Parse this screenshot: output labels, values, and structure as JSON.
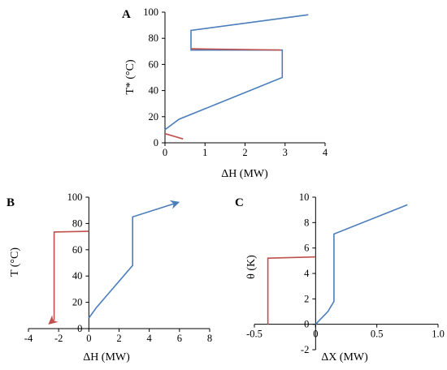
{
  "chart_data": [
    {
      "type": "line",
      "panel_label": "A",
      "xlabel": "ΔH (MW)",
      "ylabel": "T* (°C)",
      "xlim": [
        0,
        4
      ],
      "ylim": [
        0,
        100
      ],
      "xticks": [
        "0",
        "1",
        "2",
        "3",
        "4"
      ],
      "yticks": [
        "0",
        "20",
        "40",
        "60",
        "80",
        "100"
      ],
      "grid": false,
      "series": [
        {
          "color": "#4a7ebb",
          "points": [
            [
              0,
              10
            ],
            [
              0.35,
              18
            ],
            [
              2.93,
              50
            ],
            [
              2.93,
              71
            ],
            [
              0.65,
              71
            ],
            [
              0.65,
              86
            ],
            [
              3.58,
              98
            ]
          ]
        },
        {
          "color": "#c0504d",
          "points": [
            [
              0,
              7
            ],
            [
              0.45,
              3
            ]
          ]
        },
        {
          "color": "#c0504d",
          "points": [
            [
              0.65,
              72
            ],
            [
              2.9,
              71
            ]
          ]
        }
      ]
    },
    {
      "type": "line",
      "panel_label": "B",
      "xlabel": "ΔH (MW)",
      "ylabel": "T (°C)",
      "xlim": [
        -4,
        8
      ],
      "ylim": [
        0,
        100
      ],
      "xticks": [
        "-4",
        "-2",
        "0",
        "2",
        "4",
        "6",
        "8"
      ],
      "yticks": [
        "0",
        "20",
        "40",
        "60",
        "80",
        "100"
      ],
      "grid": false,
      "series": [
        {
          "color": "#4a7ebb",
          "arrow": true,
          "points": [
            [
              0,
              8
            ],
            [
              0.5,
              16
            ],
            [
              2.9,
              48
            ],
            [
              2.9,
              73
            ],
            [
              2.9,
              85
            ],
            [
              5.9,
              96
            ]
          ]
        },
        {
          "color": "#c0504d",
          "arrow": true,
          "points": [
            [
              0,
              74
            ],
            [
              -2.3,
              73.5
            ],
            [
              -2.3,
              7
            ],
            [
              -2.6,
              4
            ]
          ]
        }
      ]
    },
    {
      "type": "line",
      "panel_label": "C",
      "xlabel": "ΔX (MW)",
      "ylabel": "θ (K)",
      "xlim": [
        -0.5,
        1.0
      ],
      "ylim": [
        -2,
        10
      ],
      "xticks": [
        "-0.5",
        "0",
        "0.5",
        "1.0"
      ],
      "yticks": [
        "-2",
        "0",
        "2",
        "4",
        "6",
        "8",
        "10"
      ],
      "grid": false,
      "series": [
        {
          "color": "#4a7ebb",
          "points": [
            [
              0,
              0
            ],
            [
              0.1,
              1
            ],
            [
              0.15,
              1.8
            ],
            [
              0.15,
              7.1
            ],
            [
              0.75,
              9.4
            ]
          ]
        },
        {
          "color": "#c0504d",
          "points": [
            [
              0,
              5.3
            ],
            [
              -0.39,
              5.2
            ],
            [
              -0.39,
              0
            ]
          ]
        }
      ]
    }
  ]
}
